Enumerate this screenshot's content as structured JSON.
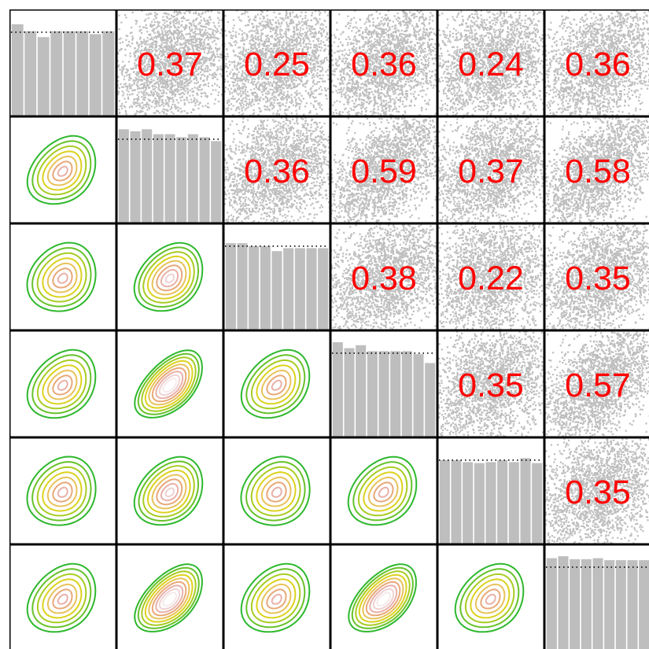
{
  "chart_data": {
    "type": "scatterplot-matrix",
    "n_vars": 6,
    "colors": {
      "corr_text": "#ff0000",
      "points": "#bebebe",
      "hist_bar": "#bebebe",
      "panel_border": "#000000",
      "contours": [
        "#2eb82e",
        "#66c22a",
        "#a8cc22",
        "#dcd21e",
        "#e8c25a",
        "#e8a878",
        "#e8b0a8",
        "#eed2d2",
        "#f6eaea",
        "#ffffff"
      ]
    },
    "correlation_labels": [
      {
        "row": 0,
        "col": 1,
        "label": "0.37",
        "r": 0.37
      },
      {
        "row": 0,
        "col": 2,
        "label": "0.25",
        "r": 0.25
      },
      {
        "row": 0,
        "col": 3,
        "label": "0.36",
        "r": 0.36
      },
      {
        "row": 0,
        "col": 4,
        "label": "0.24",
        "r": 0.24
      },
      {
        "row": 0,
        "col": 5,
        "label": "0.36",
        "r": 0.36
      },
      {
        "row": 1,
        "col": 2,
        "label": "0.36",
        "r": 0.36
      },
      {
        "row": 1,
        "col": 3,
        "label": "0.59",
        "r": 0.59
      },
      {
        "row": 1,
        "col": 4,
        "label": "0.37",
        "r": 0.37
      },
      {
        "row": 1,
        "col": 5,
        "label": "0.58",
        "r": 0.58
      },
      {
        "row": 2,
        "col": 3,
        "label": "0.38",
        "r": 0.38
      },
      {
        "row": 2,
        "col": 4,
        "label": "0.22",
        "r": 0.22
      },
      {
        "row": 2,
        "col": 5,
        "label": "0.35",
        "r": 0.35
      },
      {
        "row": 3,
        "col": 4,
        "label": "0.35",
        "r": 0.35
      },
      {
        "row": 3,
        "col": 5,
        "label": "0.57",
        "r": 0.57
      },
      {
        "row": 4,
        "col": 5,
        "label": "0.35",
        "r": 0.35
      }
    ],
    "histograms": [
      {
        "var": 0,
        "values": [
          0.93,
          0.86,
          0.8,
          0.86,
          0.86,
          0.86,
          0.83,
          0.86
        ]
      },
      {
        "var": 1,
        "values": [
          0.95,
          0.93,
          0.95,
          0.9,
          0.9,
          0.87,
          0.9,
          0.87,
          0.83
        ]
      },
      {
        "var": 2,
        "values": [
          0.88,
          0.88,
          0.85,
          0.85,
          0.8,
          0.83,
          0.83,
          0.83,
          0.83
        ]
      },
      {
        "var": 3,
        "values": [
          0.96,
          0.9,
          0.93,
          0.87,
          0.87,
          0.87,
          0.87,
          0.84,
          0.75
        ]
      },
      {
        "var": 4,
        "values": [
          0.85,
          0.85,
          0.83,
          0.82,
          0.83,
          0.85,
          0.83,
          0.87,
          0.82
        ]
      },
      {
        "var": 5,
        "values": [
          0.94,
          0.96,
          0.93,
          0.93,
          0.94,
          0.92,
          0.92,
          0.92,
          0.92
        ]
      }
    ],
    "histogram_reference_level": 0.85,
    "contour_panels": [
      {
        "row": 1,
        "col": 0,
        "r": 0.37,
        "levels": 7
      },
      {
        "row": 2,
        "col": 0,
        "r": 0.25,
        "levels": 7
      },
      {
        "row": 2,
        "col": 1,
        "r": 0.36,
        "levels": 8
      },
      {
        "row": 3,
        "col": 0,
        "r": 0.36,
        "levels": 7
      },
      {
        "row": 3,
        "col": 1,
        "r": 0.59,
        "levels": 10
      },
      {
        "row": 3,
        "col": 2,
        "r": 0.38,
        "levels": 7
      },
      {
        "row": 4,
        "col": 0,
        "r": 0.24,
        "levels": 7
      },
      {
        "row": 4,
        "col": 1,
        "r": 0.37,
        "levels": 8
      },
      {
        "row": 4,
        "col": 2,
        "r": 0.22,
        "levels": 7
      },
      {
        "row": 4,
        "col": 3,
        "r": 0.35,
        "levels": 7
      },
      {
        "row": 5,
        "col": 0,
        "r": 0.36,
        "levels": 7
      },
      {
        "row": 5,
        "col": 1,
        "r": 0.58,
        "levels": 10
      },
      {
        "row": 5,
        "col": 2,
        "r": 0.35,
        "levels": 7
      },
      {
        "row": 5,
        "col": 3,
        "r": 0.57,
        "levels": 10
      },
      {
        "row": 5,
        "col": 4,
        "r": 0.35,
        "levels": 7
      }
    ],
    "grid": false
  }
}
